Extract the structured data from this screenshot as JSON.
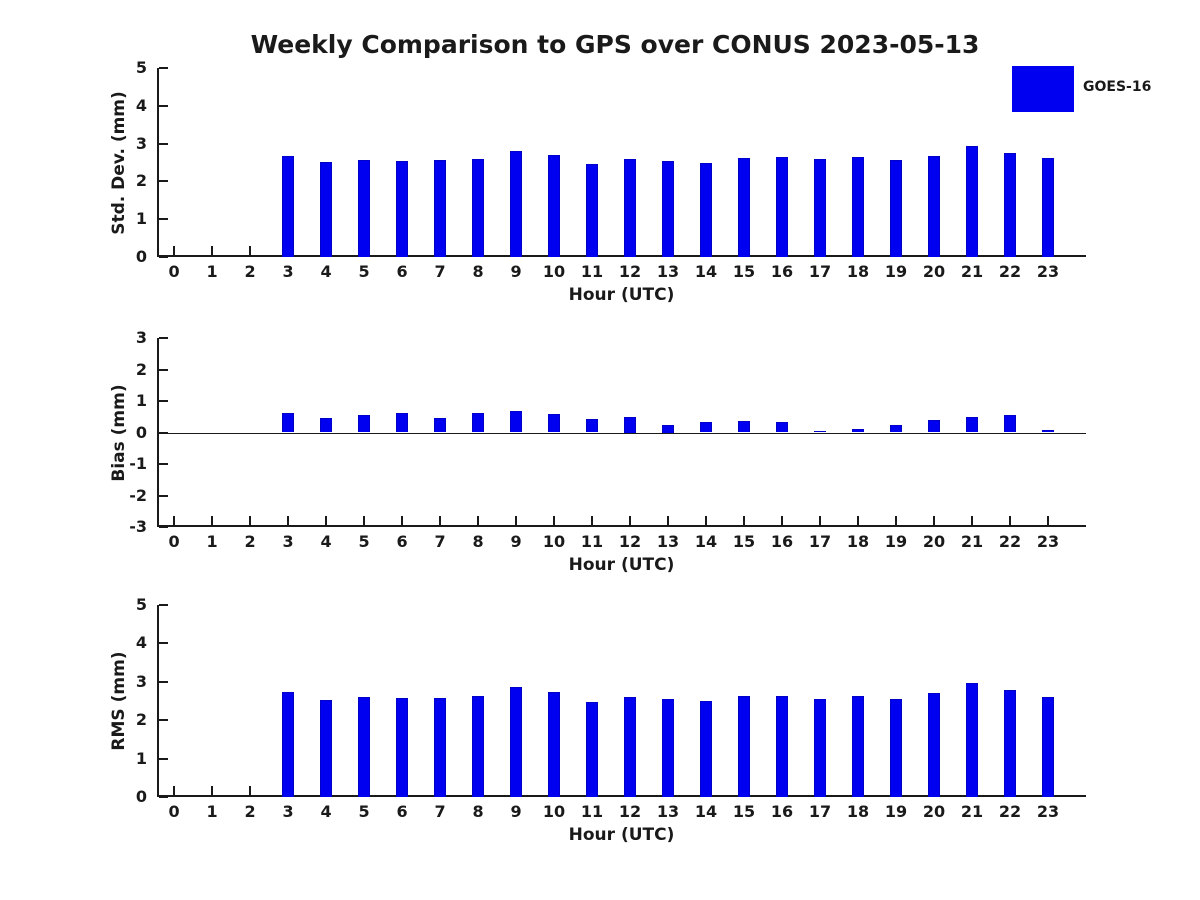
{
  "title": "Weekly Comparison to GPS over CONUS 2023-05-13",
  "legend": {
    "label": "GOES-16",
    "color": "#0000f0"
  },
  "colors": {
    "bar_fill": "#0000f0",
    "bar_edge": "#0000c8",
    "axis": "#1a1a1a",
    "text": "#1a1a1a",
    "background": "#ffffff"
  },
  "chart_data": [
    {
      "type": "bar",
      "title": "",
      "ylabel": "Std. Dev. (mm)",
      "xlabel": "Hour (UTC)",
      "categories": [
        0,
        1,
        2,
        3,
        4,
        5,
        6,
        7,
        8,
        9,
        10,
        11,
        12,
        13,
        14,
        15,
        16,
        17,
        18,
        19,
        20,
        21,
        22,
        23
      ],
      "series": [
        {
          "name": "GOES-16",
          "values": [
            null,
            null,
            null,
            2.68,
            2.51,
            2.57,
            2.53,
            2.56,
            2.59,
            2.8,
            2.69,
            2.46,
            2.59,
            2.53,
            2.5,
            2.62,
            2.64,
            2.58,
            2.64,
            2.57,
            2.66,
            2.93,
            2.74,
            2.63
          ]
        }
      ],
      "ylim": [
        0,
        5
      ],
      "yticks": [
        0,
        1,
        2,
        3,
        4,
        5
      ],
      "xlim": [
        -0.45,
        24
      ],
      "grid": false,
      "zero_line": false
    },
    {
      "type": "bar",
      "title": "",
      "ylabel": "Bias (mm)",
      "xlabel": "Hour (UTC)",
      "categories": [
        0,
        1,
        2,
        3,
        4,
        5,
        6,
        7,
        8,
        9,
        10,
        11,
        12,
        13,
        14,
        15,
        16,
        17,
        18,
        19,
        20,
        21,
        22,
        23
      ],
      "series": [
        {
          "name": "GOES-16",
          "values": [
            null,
            null,
            null,
            0.61,
            0.47,
            0.57,
            0.61,
            0.47,
            0.61,
            0.69,
            0.58,
            0.42,
            0.5,
            0.25,
            0.33,
            0.38,
            0.34,
            0.06,
            0.1,
            0.23,
            0.41,
            0.48,
            0.54,
            0.09
          ]
        }
      ],
      "ylim": [
        -3,
        3
      ],
      "yticks": [
        -3,
        -2,
        -1,
        0,
        1,
        2,
        3
      ],
      "xlim": [
        -0.45,
        24
      ],
      "grid": false,
      "zero_line": true
    },
    {
      "type": "bar",
      "title": "",
      "ylabel": "RMS (mm)",
      "xlabel": "Hour (UTC)",
      "categories": [
        0,
        1,
        2,
        3,
        4,
        5,
        6,
        7,
        8,
        9,
        10,
        11,
        12,
        13,
        14,
        15,
        16,
        17,
        18,
        19,
        20,
        21,
        22,
        23
      ],
      "series": [
        {
          "name": "GOES-16",
          "values": [
            null,
            null,
            null,
            2.74,
            2.53,
            2.61,
            2.59,
            2.59,
            2.64,
            2.87,
            2.74,
            2.48,
            2.61,
            2.54,
            2.51,
            2.63,
            2.63,
            2.56,
            2.63,
            2.55,
            2.7,
            2.96,
            2.79,
            2.61
          ]
        }
      ],
      "ylim": [
        0,
        5
      ],
      "yticks": [
        0,
        1,
        2,
        3,
        4,
        5
      ],
      "xlim": [
        -0.45,
        24
      ],
      "grid": false,
      "zero_line": false
    }
  ]
}
